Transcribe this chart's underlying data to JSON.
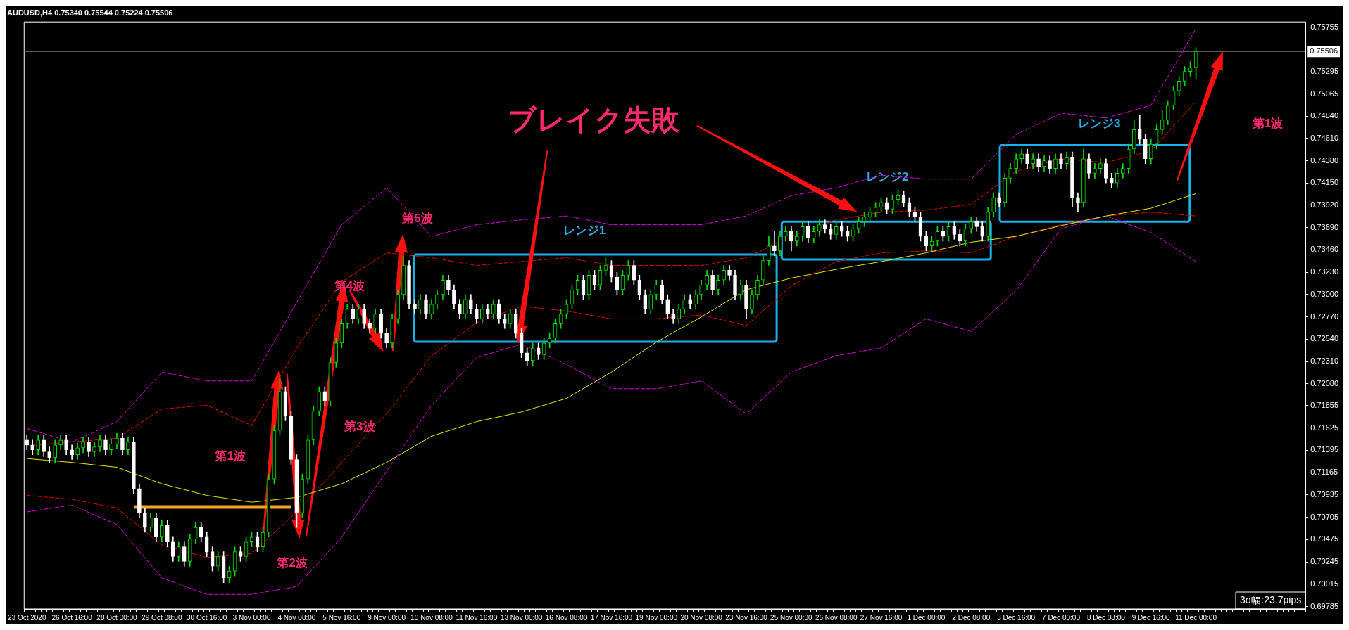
{
  "chart_data": {
    "type": "candlestick",
    "title": "AUDUSD,H4 0.75340 0.75544 0.75224 0.75506",
    "colors": [
      "#ffffff",
      "#ffffff",
      "#00e000",
      "#ffffff",
      "#ffffff",
      "#00e000",
      "#00e000",
      "#ffffff",
      "#ffffff",
      "#00e000",
      "#00e000",
      "#ffffff",
      "#00e000",
      "#00e000",
      "#ffffff",
      "#00e000",
      "#00e000",
      "#ffffff",
      "#00e000",
      "#ffffff",
      "#ffffff",
      "#ffffff",
      "#00e000",
      "#ffffff",
      "#00e000",
      "#ffffff",
      "#ffffff",
      "#00e000",
      "#ffffff",
      "#00e000",
      "#00e000",
      "#ffffff",
      "#ffffff",
      "#ffffff",
      "#00e000",
      "#ffffff",
      "#00e000",
      "#00e000",
      "#ffffff",
      "#00e000",
      "#00e000",
      "#ffffff",
      "#00e000",
      "#00e000",
      "#00e000",
      "#00e000",
      "#ffffff",
      "#ffffff",
      "#ffffff",
      "#00e000",
      "#00e000",
      "#00e000",
      "#00e000",
      "#ffffff",
      "#00e000",
      "#00e000",
      "#00e000",
      "#00e000",
      "#ffffff",
      "#00e000",
      "#ffffff",
      "#ffffff",
      "#00e000",
      "#ffffff",
      "#ffffff",
      "#00e000",
      "#00e000",
      "#00e000",
      "#ffffff",
      "#ffffff",
      "#00e000",
      "#ffffff",
      "#00e000",
      "#00e000",
      "#00e000",
      "#ffffff",
      "#ffffff",
      "#ffffff",
      "#00e000",
      "#ffffff",
      "#ffffff",
      "#00e000",
      "#ffffff",
      "#00e000",
      "#ffffff",
      "#ffffff",
      "#00e000",
      "#ffffff",
      "#ffffff",
      "#ffffff",
      "#00e000",
      "#ffffff",
      "#00e000",
      "#00e000",
      "#00e000",
      "#00e000",
      "#00e000",
      "#00e000",
      "#00e000",
      "#ffffff",
      "#00e000",
      "#ffffff",
      "#00e000",
      "#00e000",
      "#ffffff",
      "#ffffff",
      "#00e000",
      "#00e000",
      "#ffffff",
      "#ffffff",
      "#ffffff",
      "#00e000",
      "#00e000",
      "#ffffff",
      "#ffffff",
      "#ffffff",
      "#00e000",
      "#00e000",
      "#ffffff",
      "#00e000",
      "#00e000",
      "#00e000",
      "#ffffff",
      "#00e000",
      "#00e000",
      "#ffffff",
      "#ffffff",
      "#00e000",
      "#ffffff",
      "#00e000",
      "#00e000",
      "#00e000",
      "#00e000",
      "#ffffff",
      "#00e000",
      "#00e000",
      "#ffffff",
      "#00e000",
      "#00e000",
      "#ffffff",
      "#00e000",
      "#00e000",
      "#ffffff",
      "#ffffff",
      "#00e000",
      "#ffffff",
      "#ffffff",
      "#00e000",
      "#00e000",
      "#00e000",
      "#00e000",
      "#00e000",
      "#00e000",
      "#ffffff",
      "#00e000",
      "#00e000",
      "#ffffff",
      "#ffffff",
      "#ffffff",
      "#ffffff",
      "#ffffff",
      "#00e000",
      "#00e000",
      "#ffffff",
      "#00e000",
      "#ffffff",
      "#ffffff",
      "#00e000",
      "#00e000",
      "#ffffff",
      "#ffffff",
      "#00e000",
      "#00e000",
      "#ffffff",
      "#00e000",
      "#00e000",
      "#00e000",
      "#00e000",
      "#ffffff",
      "#00e000",
      "#ffffff",
      "#00e000",
      "#ffffff",
      "#00e000",
      "#ffffff",
      "#00e000",
      "#ffffff",
      "#ffffff",
      "#00e000",
      "#ffffff",
      "#00e000",
      "#00e000",
      "#ffffff",
      "#ffffff",
      "#00e000",
      "#00e000",
      "#00e000",
      "#00e000",
      "#ffffff",
      "#ffffff",
      "#00e000",
      "#00e000",
      "#00e000",
      "#00e000",
      "#00e000",
      "#00e000",
      "#00e000",
      "#00e000",
      "#00e000",
      null,
      null,
      null,
      null,
      null,
      null,
      null,
      null,
      null,
      null,
      null,
      null,
      null,
      null,
      null,
      null,
      null,
      null,
      null
    ],
    "grid": false,
    "legend": false,
    "marker": "none",
    "categories": [
      "23 Oct 2020",
      null,
      null,
      null,
      null,
      null,
      null,
      null,
      "26 Oct 16:00",
      null,
      null,
      null,
      null,
      null,
      null,
      null,
      "28 Oct 00:00",
      null,
      null,
      null,
      null,
      null,
      null,
      null,
      "29 Oct 08:00",
      null,
      null,
      null,
      null,
      null,
      null,
      null,
      "30 Oct 16:00",
      null,
      null,
      null,
      null,
      null,
      null,
      null,
      "3 Nov 00:00",
      null,
      null,
      null,
      null,
      null,
      null,
      null,
      "4 Nov 08:00",
      null,
      null,
      null,
      null,
      null,
      null,
      null,
      "5 Nov 16:00",
      null,
      null,
      null,
      null,
      null,
      null,
      null,
      "9 Nov 00:00",
      null,
      null,
      null,
      null,
      null,
      null,
      null,
      "10 Nov 08:00",
      null,
      null,
      null,
      null,
      null,
      null,
      null,
      "11 Nov 16:00",
      null,
      null,
      null,
      null,
      null,
      null,
      null,
      "13 Nov 00:00",
      null,
      null,
      null,
      null,
      null,
      null,
      null,
      "16 Nov 08:00",
      null,
      null,
      null,
      null,
      null,
      null,
      null,
      "17 Nov 16:00",
      null,
      null,
      null,
      null,
      null,
      null,
      null,
      "19 Nov 00:00",
      null,
      null,
      null,
      null,
      null,
      null,
      null,
      "20 Nov 08:00",
      null,
      null,
      null,
      null,
      null,
      null,
      null,
      "23 Nov 16:00",
      null,
      null,
      null,
      null,
      null,
      null,
      null,
      "25 Nov 00:00",
      null,
      null,
      null,
      null,
      null,
      null,
      null,
      "26 Nov 08:00",
      null,
      null,
      null,
      null,
      null,
      null,
      null,
      "27 Nov 16:00",
      null,
      null,
      null,
      null,
      null,
      null,
      null,
      "1 Dec 00:00",
      null,
      null,
      null,
      null,
      null,
      null,
      null,
      "2 Dec 08:00",
      null,
      null,
      null,
      null,
      null,
      null,
      null,
      "3 Dec 16:00",
      null,
      null,
      null,
      null,
      null,
      null,
      null,
      "7 Dec 00:00",
      null,
      null,
      null,
      null,
      null,
      null,
      null,
      "8 Dec 08:00",
      null,
      null,
      null,
      null,
      null,
      null,
      null,
      "9 Dec 16:00",
      null,
      null,
      null,
      null,
      null,
      null,
      null,
      "11 Dec 00:00",
      null,
      null,
      null,
      null,
      null,
      null,
      null,
      null,
      null,
      null,
      null,
      null,
      null,
      null,
      null,
      null,
      null,
      null,
      null
    ],
    "ohlc": [
      [
        0.715,
        0.7155,
        0.714,
        0.7145
      ],
      [
        0.7145,
        0.715,
        0.7135,
        0.714
      ],
      [
        0.714,
        0.7155,
        0.7135,
        0.715
      ],
      [
        0.715,
        0.7155,
        0.7133,
        0.7138
      ],
      [
        0.7138,
        0.7143,
        0.7127,
        0.7132
      ],
      [
        0.7132,
        0.715,
        0.7127,
        0.7145
      ],
      [
        0.7145,
        0.7155,
        0.714,
        0.715
      ],
      [
        0.715,
        0.7155,
        0.7135,
        0.714
      ],
      [
        0.714,
        0.7145,
        0.713,
        0.7135
      ],
      [
        0.7135,
        0.7147,
        0.713,
        0.7142
      ],
      [
        0.7142,
        0.7153,
        0.7137,
        0.7148
      ],
      [
        0.7148,
        0.7153,
        0.7133,
        0.7138
      ],
      [
        0.7138,
        0.7148,
        0.7133,
        0.7143
      ],
      [
        0.7143,
        0.7155,
        0.7138,
        0.715
      ],
      [
        0.715,
        0.7155,
        0.7135,
        0.714
      ],
      [
        0.714,
        0.7151,
        0.7135,
        0.7146
      ],
      [
        0.7146,
        0.7157,
        0.7141,
        0.7152
      ],
      [
        0.7152,
        0.7157,
        0.7135,
        0.714
      ],
      [
        0.714,
        0.7153,
        0.7135,
        0.7148
      ],
      [
        0.7148,
        0.7153,
        0.7095,
        0.71
      ],
      [
        0.71,
        0.7105,
        0.707,
        0.7075
      ],
      [
        0.7075,
        0.708,
        0.7055,
        0.706
      ],
      [
        0.706,
        0.7075,
        0.7055,
        0.707
      ],
      [
        0.707,
        0.7075,
        0.7045,
        0.705
      ],
      [
        0.705,
        0.7067,
        0.7045,
        0.7062
      ],
      [
        0.7062,
        0.7067,
        0.704,
        0.7045
      ],
      [
        0.7045,
        0.705,
        0.7025,
        0.703
      ],
      [
        0.703,
        0.7045,
        0.7025,
        0.704
      ],
      [
        0.704,
        0.7045,
        0.702,
        0.7025
      ],
      [
        0.7025,
        0.7053,
        0.702,
        0.7048
      ],
      [
        0.7048,
        0.7065,
        0.7043,
        0.706
      ],
      [
        0.706,
        0.7065,
        0.7045,
        0.705
      ],
      [
        0.705,
        0.7055,
        0.703,
        0.7035
      ],
      [
        0.7035,
        0.704,
        0.7015,
        0.702
      ],
      [
        0.702,
        0.7035,
        0.7015,
        0.703
      ],
      [
        0.703,
        0.7035,
        0.7003,
        0.7008
      ],
      [
        0.7008,
        0.702,
        0.7003,
        0.7015
      ],
      [
        0.7015,
        0.704,
        0.701,
        0.7035
      ],
      [
        0.7035,
        0.704,
        0.7025,
        0.703
      ],
      [
        0.703,
        0.705,
        0.7025,
        0.7045
      ],
      [
        0.7045,
        0.7055,
        0.704,
        0.705
      ],
      [
        0.705,
        0.7055,
        0.7035,
        0.704
      ],
      [
        0.704,
        0.706,
        0.7035,
        0.7055
      ],
      [
        0.7055,
        0.7115,
        0.705,
        0.711
      ],
      [
        0.711,
        0.7165,
        0.7105,
        0.716
      ],
      [
        0.716,
        0.7215,
        0.7155,
        0.72
      ],
      [
        0.72,
        0.7205,
        0.717,
        0.7175
      ],
      [
        0.7175,
        0.718,
        0.7125,
        0.713
      ],
      [
        0.713,
        0.7135,
        0.706,
        0.7075
      ],
      [
        0.7075,
        0.7115,
        0.707,
        0.711
      ],
      [
        0.711,
        0.7155,
        0.7105,
        0.715
      ],
      [
        0.715,
        0.7185,
        0.7145,
        0.718
      ],
      [
        0.718,
        0.7205,
        0.7175,
        0.72
      ],
      [
        0.72,
        0.7205,
        0.7185,
        0.719
      ],
      [
        0.719,
        0.7235,
        0.7185,
        0.723
      ],
      [
        0.723,
        0.7255,
        0.7225,
        0.725
      ],
      [
        0.725,
        0.7275,
        0.7245,
        0.727
      ],
      [
        0.727,
        0.729,
        0.7265,
        0.7285
      ],
      [
        0.7285,
        0.729,
        0.727,
        0.7275
      ],
      [
        0.7275,
        0.729,
        0.727,
        0.7285
      ],
      [
        0.7285,
        0.729,
        0.7265,
        0.727
      ],
      [
        0.727,
        0.7275,
        0.726,
        0.7265
      ],
      [
        0.7265,
        0.7285,
        0.726,
        0.728
      ],
      [
        0.728,
        0.7285,
        0.7255,
        0.726
      ],
      [
        0.726,
        0.7265,
        0.7245,
        0.725
      ],
      [
        0.725,
        0.728,
        0.7245,
        0.7275
      ],
      [
        0.7275,
        0.7305,
        0.727,
        0.73
      ],
      [
        0.73,
        0.734,
        0.7295,
        0.733
      ],
      [
        0.733,
        0.7335,
        0.7285,
        0.729
      ],
      [
        0.729,
        0.7295,
        0.728,
        0.7285
      ],
      [
        0.7285,
        0.73,
        0.728,
        0.7295
      ],
      [
        0.7295,
        0.73,
        0.7275,
        0.728
      ],
      [
        0.728,
        0.7295,
        0.7275,
        0.729
      ],
      [
        0.729,
        0.7305,
        0.7285,
        0.73
      ],
      [
        0.73,
        0.732,
        0.7295,
        0.7315
      ],
      [
        0.7315,
        0.732,
        0.73,
        0.7305
      ],
      [
        0.7305,
        0.731,
        0.7285,
        0.729
      ],
      [
        0.729,
        0.7295,
        0.7275,
        0.728
      ],
      [
        0.728,
        0.73,
        0.7275,
        0.7295
      ],
      [
        0.7295,
        0.73,
        0.728,
        0.7285
      ],
      [
        0.7285,
        0.729,
        0.727,
        0.7275
      ],
      [
        0.7275,
        0.729,
        0.727,
        0.7285
      ],
      [
        0.7285,
        0.729,
        0.7275,
        0.728
      ],
      [
        0.728,
        0.7295,
        0.7275,
        0.729
      ],
      [
        0.729,
        0.7295,
        0.727,
        0.7275
      ],
      [
        0.7275,
        0.728,
        0.7265,
        0.727
      ],
      [
        0.727,
        0.7285,
        0.7265,
        0.728
      ],
      [
        0.728,
        0.7285,
        0.7255,
        0.726
      ],
      [
        0.726,
        0.7265,
        0.7235,
        0.724
      ],
      [
        0.724,
        0.7245,
        0.7227,
        0.7232
      ],
      [
        0.7232,
        0.725,
        0.7227,
        0.7245
      ],
      [
        0.7245,
        0.725,
        0.7233,
        0.7238
      ],
      [
        0.7238,
        0.7255,
        0.7233,
        0.725
      ],
      [
        0.725,
        0.726,
        0.7245,
        0.7255
      ],
      [
        0.7255,
        0.7275,
        0.725,
        0.727
      ],
      [
        0.727,
        0.7285,
        0.7265,
        0.728
      ],
      [
        0.728,
        0.7295,
        0.7275,
        0.729
      ],
      [
        0.729,
        0.731,
        0.7285,
        0.7305
      ],
      [
        0.7305,
        0.732,
        0.73,
        0.7315
      ],
      [
        0.7315,
        0.732,
        0.7295,
        0.73
      ],
      [
        0.73,
        0.7325,
        0.7295,
        0.732
      ],
      [
        0.732,
        0.7325,
        0.7305,
        0.731
      ],
      [
        0.731,
        0.733,
        0.7305,
        0.7325
      ],
      [
        0.7325,
        0.7338,
        0.732,
        0.733
      ],
      [
        0.733,
        0.7335,
        0.7313,
        0.7318
      ],
      [
        0.7318,
        0.7323,
        0.73,
        0.7305
      ],
      [
        0.7305,
        0.7325,
        0.73,
        0.732
      ],
      [
        0.732,
        0.7335,
        0.7315,
        0.733
      ],
      [
        0.733,
        0.7335,
        0.731,
        0.7315
      ],
      [
        0.7315,
        0.732,
        0.7295,
        0.73
      ],
      [
        0.73,
        0.7305,
        0.728,
        0.7285
      ],
      [
        0.7285,
        0.7305,
        0.728,
        0.73
      ],
      [
        0.73,
        0.7315,
        0.7295,
        0.731
      ],
      [
        0.731,
        0.7315,
        0.729,
        0.7295
      ],
      [
        0.7295,
        0.73,
        0.7275,
        0.728
      ],
      [
        0.728,
        0.7285,
        0.727,
        0.7275
      ],
      [
        0.7275,
        0.729,
        0.727,
        0.7285
      ],
      [
        0.7285,
        0.73,
        0.728,
        0.7295
      ],
      [
        0.7295,
        0.73,
        0.7285,
        0.729
      ],
      [
        0.729,
        0.7305,
        0.7285,
        0.73
      ],
      [
        0.73,
        0.7315,
        0.7295,
        0.731
      ],
      [
        0.731,
        0.7325,
        0.7305,
        0.732
      ],
      [
        0.732,
        0.7325,
        0.73,
        0.7305
      ],
      [
        0.7305,
        0.732,
        0.73,
        0.7315
      ],
      [
        0.7315,
        0.733,
        0.731,
        0.7325
      ],
      [
        0.7325,
        0.733,
        0.7315,
        0.732
      ],
      [
        0.732,
        0.7325,
        0.7295,
        0.73
      ],
      [
        0.73,
        0.7315,
        0.7295,
        0.731
      ],
      [
        0.731,
        0.7315,
        0.7275,
        0.7285
      ],
      [
        0.7285,
        0.7305,
        0.728,
        0.73
      ],
      [
        0.73,
        0.732,
        0.7295,
        0.7315
      ],
      [
        0.7315,
        0.734,
        0.731,
        0.7335
      ],
      [
        0.7335,
        0.736,
        0.733,
        0.735
      ],
      [
        0.735,
        0.7365,
        0.734,
        0.7345
      ],
      [
        0.7345,
        0.7365,
        0.734,
        0.736
      ],
      [
        0.736,
        0.737,
        0.7355,
        0.7365
      ],
      [
        0.7365,
        0.737,
        0.7345,
        0.7355
      ],
      [
        0.7355,
        0.7365,
        0.735,
        0.736
      ],
      [
        0.736,
        0.7375,
        0.7355,
        0.737
      ],
      [
        0.737,
        0.7375,
        0.7353,
        0.7358
      ],
      [
        0.7358,
        0.737,
        0.7353,
        0.7365
      ],
      [
        0.7365,
        0.7377,
        0.736,
        0.7372
      ],
      [
        0.7372,
        0.7377,
        0.7363,
        0.7368
      ],
      [
        0.7368,
        0.7373,
        0.7357,
        0.7362
      ],
      [
        0.7362,
        0.7375,
        0.7357,
        0.737
      ],
      [
        0.737,
        0.7375,
        0.736,
        0.7365
      ],
      [
        0.7365,
        0.737,
        0.7355,
        0.736
      ],
      [
        0.736,
        0.7373,
        0.7355,
        0.7368
      ],
      [
        0.7368,
        0.738,
        0.7363,
        0.7375
      ],
      [
        0.7375,
        0.7385,
        0.737,
        0.738
      ],
      [
        0.738,
        0.739,
        0.7375,
        0.7385
      ],
      [
        0.7385,
        0.7395,
        0.738,
        0.739
      ],
      [
        0.739,
        0.74,
        0.7385,
        0.7395
      ],
      [
        0.7395,
        0.74,
        0.7383,
        0.7388
      ],
      [
        0.7388,
        0.7403,
        0.7383,
        0.7398
      ],
      [
        0.7398,
        0.7408,
        0.7393,
        0.7402
      ],
      [
        0.7402,
        0.7407,
        0.739,
        0.7395
      ],
      [
        0.7395,
        0.74,
        0.738,
        0.7385
      ],
      [
        0.7385,
        0.739,
        0.7375,
        0.738
      ],
      [
        0.738,
        0.7385,
        0.7355,
        0.736
      ],
      [
        0.736,
        0.7365,
        0.7345,
        0.735
      ],
      [
        0.735,
        0.736,
        0.7345,
        0.7355
      ],
      [
        0.7355,
        0.737,
        0.735,
        0.7365
      ],
      [
        0.7365,
        0.737,
        0.7355,
        0.736
      ],
      [
        0.736,
        0.7375,
        0.7355,
        0.737
      ],
      [
        0.737,
        0.7375,
        0.7357,
        0.7362
      ],
      [
        0.7362,
        0.7367,
        0.735,
        0.7355
      ],
      [
        0.7355,
        0.7373,
        0.735,
        0.7368
      ],
      [
        0.7368,
        0.738,
        0.7363,
        0.7375
      ],
      [
        0.7375,
        0.738,
        0.7365,
        0.737
      ],
      [
        0.737,
        0.7375,
        0.7355,
        0.736
      ],
      [
        0.736,
        0.739,
        0.7355,
        0.7385
      ],
      [
        0.7385,
        0.7405,
        0.738,
        0.74
      ],
      [
        0.74,
        0.7405,
        0.739,
        0.7395
      ],
      [
        0.7395,
        0.7425,
        0.739,
        0.742
      ],
      [
        0.742,
        0.7435,
        0.7415,
        0.743
      ],
      [
        0.743,
        0.7445,
        0.7425,
        0.744
      ],
      [
        0.744,
        0.745,
        0.7435,
        0.7445
      ],
      [
        0.7445,
        0.745,
        0.743,
        0.7435
      ],
      [
        0.7435,
        0.7445,
        0.743,
        0.744
      ],
      [
        0.744,
        0.7445,
        0.7427,
        0.7432
      ],
      [
        0.7432,
        0.7443,
        0.7427,
        0.7438
      ],
      [
        0.7438,
        0.7443,
        0.7425,
        0.743
      ],
      [
        0.743,
        0.7445,
        0.7425,
        0.744
      ],
      [
        0.744,
        0.7445,
        0.743,
        0.7435
      ],
      [
        0.7435,
        0.7447,
        0.743,
        0.7442
      ],
      [
        0.7442,
        0.7447,
        0.739,
        0.74
      ],
      [
        0.74,
        0.7405,
        0.7385,
        0.7395
      ],
      [
        0.7395,
        0.745,
        0.739,
        0.744
      ],
      [
        0.744,
        0.7445,
        0.742,
        0.7425
      ],
      [
        0.7425,
        0.7435,
        0.742,
        0.743
      ],
      [
        0.743,
        0.744,
        0.7425,
        0.7435
      ],
      [
        0.7435,
        0.744,
        0.7415,
        0.742
      ],
      [
        0.742,
        0.7425,
        0.741,
        0.7415
      ],
      [
        0.7415,
        0.743,
        0.741,
        0.7425
      ],
      [
        0.7425,
        0.7435,
        0.742,
        0.743
      ],
      [
        0.743,
        0.7455,
        0.7425,
        0.745
      ],
      [
        0.745,
        0.748,
        0.7445,
        0.747
      ],
      [
        0.747,
        0.7485,
        0.7455,
        0.746
      ],
      [
        0.746,
        0.7465,
        0.7435,
        0.744
      ],
      [
        0.744,
        0.746,
        0.7435,
        0.7455
      ],
      [
        0.7455,
        0.7475,
        0.745,
        0.747
      ],
      [
        0.747,
        0.749,
        0.7465,
        0.748
      ],
      [
        0.748,
        0.75,
        0.7475,
        0.7495
      ],
      [
        0.7495,
        0.7515,
        0.749,
        0.751
      ],
      [
        0.751,
        0.7525,
        0.7505,
        0.752
      ],
      [
        0.752,
        0.7535,
        0.7515,
        0.753
      ],
      [
        0.753,
        0.754,
        0.7525,
        0.7534
      ],
      [
        0.7534,
        0.75544,
        0.75224,
        0.75506
      ],
      null,
      null,
      null,
      null,
      null,
      null,
      null,
      null,
      null,
      null,
      null,
      null,
      null,
      null,
      null,
      null,
      null,
      null,
      null
    ],
    "series": [
      {
        "type": "line",
        "color": "#e6e600",
        "line_style": "solid",
        "x": [
          "23 Oct 2020",
          "26 Oct 16:00",
          "28 Oct 00:00",
          "29 Oct 08:00",
          "30 Oct 16:00",
          "3 Nov 00:00",
          "4 Nov 08:00",
          "5 Nov 16:00",
          "9 Nov 00:00",
          "10 Nov 08:00",
          "11 Nov 16:00",
          "13 Nov 00:00",
          "16 Nov 08:00",
          "17 Nov 16:00",
          "19 Nov 00:00",
          "20 Nov 08:00",
          "23 Nov 16:00",
          "25 Nov 00:00",
          "26 Nov 08:00",
          "27 Nov 16:00",
          "1 Dec 00:00",
          "2 Dec 08:00",
          "3 Dec 16:00",
          "7 Dec 00:00",
          "8 Dec 08:00",
          "9 Dec 16:00",
          "11 Dec 00:00"
        ],
        "values": [
          0.7131,
          0.7127,
          0.7122,
          0.7105,
          0.7093,
          0.7086,
          0.7091,
          0.7105,
          0.7127,
          0.7154,
          0.7169,
          0.7179,
          0.7193,
          0.722,
          0.7251,
          0.7277,
          0.7305,
          0.7317,
          0.7326,
          0.7334,
          0.7343,
          0.7354,
          0.736,
          0.7371,
          0.7381,
          0.7389,
          0.7404
        ]
      },
      {
        "type": "line",
        "color": "#e000e0",
        "line_style": "dashed",
        "x": [
          "23 Oct 2020",
          "26 Oct 16:00",
          "28 Oct 00:00",
          "29 Oct 08:00",
          "30 Oct 16:00",
          "3 Nov 00:00",
          "4 Nov 08:00",
          "5 Nov 16:00",
          "9 Nov 00:00",
          "10 Nov 08:00",
          "11 Nov 16:00",
          "13 Nov 00:00",
          "16 Nov 08:00",
          "17 Nov 16:00",
          "19 Nov 00:00",
          "20 Nov 08:00",
          "23 Nov 16:00",
          "25 Nov 00:00",
          "26 Nov 08:00",
          "27 Nov 16:00",
          "1 Dec 00:00",
          "2 Dec 08:00",
          "3 Dec 16:00",
          "7 Dec 00:00",
          "8 Dec 08:00",
          "9 Dec 16:00",
          "11 Dec 00:00"
        ],
        "values": [
          0.7162,
          0.7148,
          0.7169,
          0.722,
          0.7211,
          0.7211,
          0.7292,
          0.7372,
          0.741,
          0.736,
          0.7372,
          0.7377,
          0.7381,
          0.7372,
          0.7372,
          0.7372,
          0.7381,
          0.7402,
          0.741,
          0.7423,
          0.7419,
          0.7419,
          0.7465,
          0.7487,
          0.7482,
          0.7495,
          0.7574
        ]
      },
      {
        "type": "line",
        "color": "#e000e0",
        "line_style": "dashed",
        "x": [
          "23 Oct 2020",
          "26 Oct 16:00",
          "28 Oct 00:00",
          "29 Oct 08:00",
          "30 Oct 16:00",
          "3 Nov 00:00",
          "4 Nov 08:00",
          "5 Nov 16:00",
          "9 Nov 00:00",
          "10 Nov 08:00",
          "11 Nov 16:00",
          "13 Nov 00:00",
          "16 Nov 08:00",
          "17 Nov 16:00",
          "19 Nov 00:00",
          "20 Nov 08:00",
          "23 Nov 16:00",
          "25 Nov 00:00",
          "26 Nov 08:00",
          "27 Nov 16:00",
          "1 Dec 00:00",
          "2 Dec 08:00",
          "3 Dec 16:00",
          "7 Dec 00:00",
          "8 Dec 08:00",
          "9 Dec 16:00",
          "11 Dec 00:00"
        ],
        "values": [
          0.7076,
          0.7083,
          0.7063,
          0.7008,
          0.6991,
          0.6991,
          0.6999,
          0.705,
          0.7118,
          0.7186,
          0.7235,
          0.7249,
          0.7228,
          0.7203,
          0.7203,
          0.7211,
          0.7177,
          0.722,
          0.7237,
          0.7245,
          0.7275,
          0.7262,
          0.7304,
          0.7368,
          0.7381,
          0.7364,
          0.7334
        ]
      },
      {
        "type": "line",
        "color": "#e00000",
        "line_style": "dashed",
        "x": [
          "23 Oct 2020",
          "26 Oct 16:00",
          "28 Oct 00:00",
          "29 Oct 08:00",
          "30 Oct 16:00",
          "3 Nov 00:00",
          "4 Nov 08:00",
          "5 Nov 16:00",
          "9 Nov 00:00",
          "10 Nov 08:00",
          "11 Nov 16:00",
          "13 Nov 00:00",
          "16 Nov 08:00",
          "17 Nov 16:00",
          "19 Nov 00:00",
          "20 Nov 08:00",
          "23 Nov 16:00",
          "25 Nov 00:00",
          "26 Nov 08:00",
          "27 Nov 16:00",
          "1 Dec 00:00",
          "2 Dec 08:00",
          "3 Dec 16:00",
          "7 Dec 00:00",
          "8 Dec 08:00",
          "9 Dec 16:00",
          "11 Dec 00:00"
        ],
        "values": [
          0.7144,
          0.7148,
          0.7152,
          0.7182,
          0.7186,
          0.7165,
          0.7245,
          0.7313,
          0.7343,
          0.7338,
          0.733,
          0.7334,
          0.7338,
          0.733,
          0.733,
          0.733,
          0.7338,
          0.736,
          0.7377,
          0.7385,
          0.7387,
          0.7393,
          0.7427,
          0.744,
          0.7436,
          0.7448,
          0.7499
        ]
      },
      {
        "type": "line",
        "color": "#e00000",
        "line_style": "dashed",
        "x": [
          "23 Oct 2020",
          "26 Oct 16:00",
          "28 Oct 00:00",
          "29 Oct 08:00",
          "30 Oct 16:00",
          "3 Nov 00:00",
          "4 Nov 08:00",
          "5 Nov 16:00",
          "9 Nov 00:00",
          "10 Nov 08:00",
          "11 Nov 16:00",
          "13 Nov 00:00",
          "16 Nov 08:00",
          "17 Nov 16:00",
          "19 Nov 00:00",
          "20 Nov 08:00",
          "23 Nov 16:00",
          "25 Nov 00:00",
          "26 Nov 08:00",
          "27 Nov 16:00",
          "1 Dec 00:00",
          "2 Dec 08:00",
          "3 Dec 16:00",
          "7 Dec 00:00",
          "8 Dec 08:00",
          "9 Dec 16:00",
          "11 Dec 00:00"
        ],
        "values": [
          0.7093,
          0.7089,
          0.708,
          0.7042,
          0.7029,
          0.7033,
          0.7076,
          0.7127,
          0.7177,
          0.7237,
          0.7271,
          0.7288,
          0.7283,
          0.7275,
          0.7275,
          0.7279,
          0.7268,
          0.7309,
          0.7334,
          0.7343,
          0.7345,
          0.7343,
          0.736,
          0.7372,
          0.7381,
          0.7385,
          0.7381
        ]
      },
      {
        "type": "line",
        "color": "#f5a623",
        "line_style": "solid",
        "values": [
          null,
          null,
          null,
          null,
          null,
          null,
          null,
          null,
          null,
          null,
          null,
          null,
          null,
          null,
          null,
          null,
          null,
          null,
          null,
          0.7081,
          0.7081,
          0.7081,
          0.7081,
          0.7081,
          0.7081,
          0.7081,
          0.7081,
          0.7081,
          0.7081,
          0.7081,
          0.7081,
          0.7081,
          0.7081,
          0.7081,
          0.7081,
          0.7081,
          0.7081,
          0.7081,
          0.7081,
          0.7081,
          0.7081,
          0.7081,
          0.7081,
          0.7081,
          0.7081,
          0.7081,
          0.7081,
          0.7081,
          null,
          null,
          null,
          null,
          null,
          null,
          null,
          null,
          null,
          null,
          null,
          null,
          null,
          null,
          null,
          null,
          null,
          null,
          null,
          null,
          null,
          null,
          null,
          null,
          null,
          null,
          null,
          null,
          null,
          null,
          null,
          null,
          null,
          null,
          null,
          null,
          null,
          null,
          null,
          null,
          null,
          null,
          null,
          null,
          null,
          null,
          null,
          null,
          null,
          null,
          null,
          null,
          null,
          null,
          null,
          null,
          null,
          null,
          null,
          null,
          null,
          null,
          null,
          null,
          null,
          null,
          null,
          null,
          null,
          null,
          null,
          null,
          null,
          null,
          null,
          null,
          null,
          null,
          null,
          null,
          null,
          null,
          null,
          null,
          null,
          null,
          null,
          null,
          null,
          null,
          null,
          null,
          null,
          null,
          null,
          null,
          null,
          null,
          null,
          null,
          null,
          null,
          null,
          null,
          null,
          null,
          null,
          null,
          null,
          null,
          null,
          null,
          null,
          null,
          null,
          null,
          null,
          null,
          null,
          null,
          null,
          null,
          null,
          null,
          null,
          null,
          null,
          null,
          null,
          null,
          null,
          null,
          null,
          null,
          null,
          null,
          null,
          null,
          null,
          null,
          null,
          null,
          null,
          null,
          null,
          null,
          null,
          null,
          null,
          null,
          null,
          null,
          null,
          null,
          null,
          null,
          null,
          null,
          null,
          null,
          null,
          null,
          null,
          null,
          null,
          null,
          null,
          null,
          null,
          null,
          null,
          null,
          null,
          null,
          null,
          null,
          null,
          null,
          null,
          null
        ]
      }
    ],
    "ylim": [
      0.6976,
      0.7581
    ],
    "yticks": [
      0.69785,
      0.70015,
      0.70245,
      0.70475,
      0.70705,
      0.70935,
      0.71165,
      0.71395,
      0.71625,
      0.71855,
      {
        "value": 0.7208,
        "label": "0.72080"
      },
      {
        "value": 0.7231,
        "label": "0.72310"
      },
      {
        "value": 0.7254,
        "label": "0.72540"
      },
      {
        "value": 0.7277,
        "label": "0.72770"
      },
      {
        "value": 0.73,
        "label": "0.73000"
      },
      {
        "value": 0.7323,
        "label": "0.73230"
      },
      {
        "value": 0.7346,
        "label": "0.73460"
      },
      {
        "value": 0.7369,
        "label": "0.73690"
      },
      {
        "value": 0.7392,
        "label": "0.73920"
      },
      {
        "value": 0.7415,
        "label": "0.74150"
      },
      {
        "value": 0.7438,
        "label": "0.74380"
      },
      {
        "value": 0.7461,
        "label": "0.74610"
      },
      {
        "value": 0.7484,
        "label": "0.74840"
      },
      0.75065,
      0.75295,
      0.75755
    ],
    "ref_lines": [
      {
        "axis": "y",
        "value": 0.75506,
        "label": "0.75506",
        "color": "#8c8c8c"
      }
    ],
    "annotations": [
      "ブレイク失敗",
      "レンジ1",
      "レンジ2",
      "レンジ3",
      "第1波",
      "第2波",
      "第3波",
      "第4波",
      "第5波",
      "第1波",
      "3σ幅:23.7pips"
    ]
  }
}
